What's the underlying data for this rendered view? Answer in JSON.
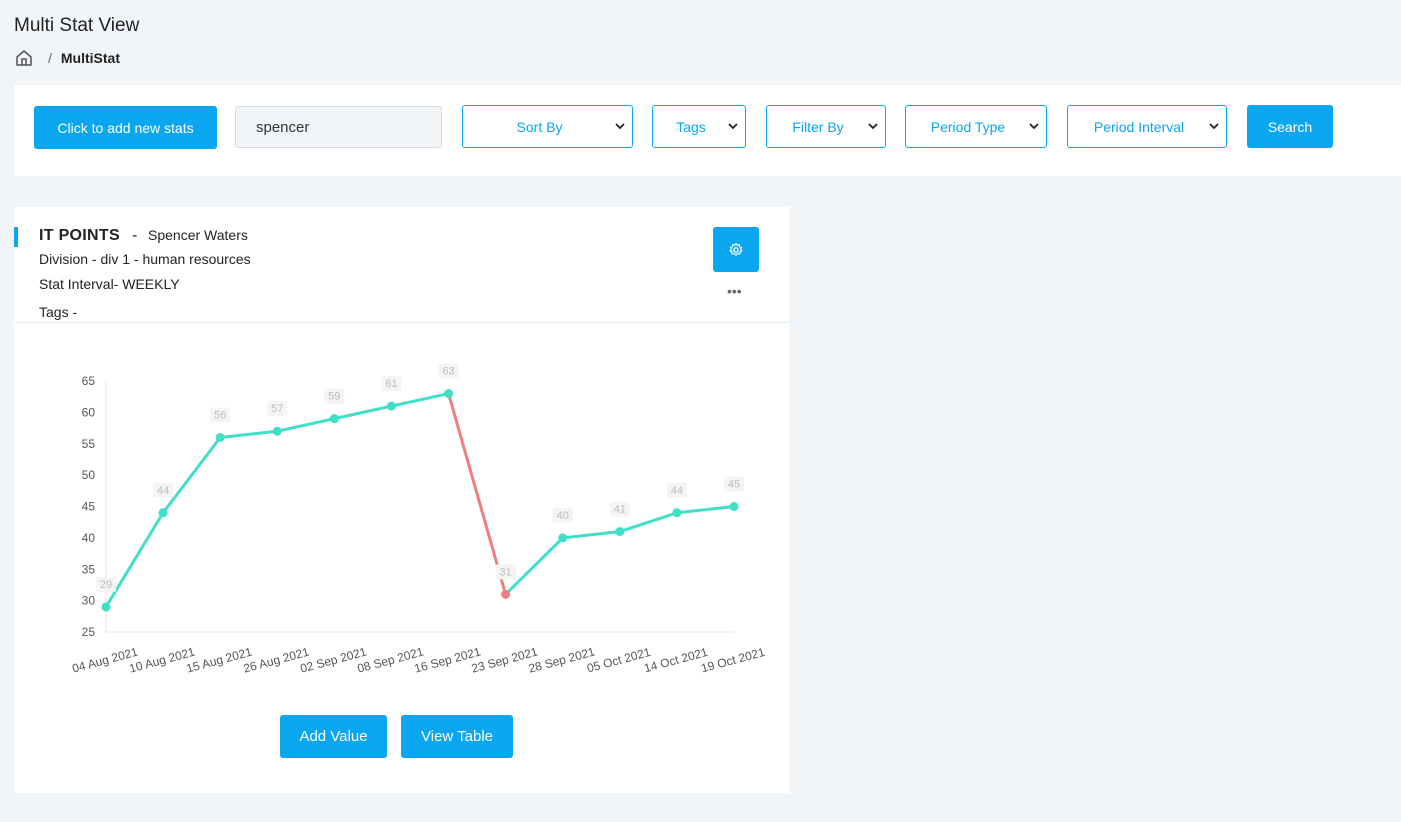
{
  "header": {
    "title": "Multi Stat View",
    "breadcrumb_current": "MultiStat",
    "breadcrumb_separator": "/"
  },
  "toolbar": {
    "add_stats_label": "Click to add new stats",
    "search_value": "spencer",
    "sort_by": "Sort By",
    "tags": "Tags",
    "filter_by": "Filter By",
    "period_type": "Period Type",
    "period_interval": "Period Interval",
    "search_label": "Search"
  },
  "card": {
    "stat_name": "IT POINTS",
    "dash": "-",
    "owner": "Spencer Waters",
    "division": "Division - div 1 - human resources",
    "interval": "Stat Interval- WEEKLY",
    "tags": "Tags -",
    "more": "•••",
    "add_value_label": "Add Value",
    "view_table_label": "View Table"
  },
  "colors": {
    "primary": "#0aa6ef",
    "line_up": "#3fdfc8",
    "line_down": "#ef7f7f"
  },
  "chart_data": {
    "type": "line",
    "categories": [
      "04 Aug 2021",
      "10 Aug 2021",
      "15 Aug 2021",
      "26 Aug 2021",
      "02 Sep 2021",
      "08 Sep 2021",
      "16 Sep 2021",
      "23 Sep 2021",
      "28 Sep 2021",
      "05 Oct 2021",
      "14 Oct 2021",
      "19 Oct 2021"
    ],
    "values": [
      29,
      44,
      56,
      57,
      59,
      61,
      63,
      31,
      40,
      41,
      44,
      45
    ],
    "ylim": [
      25,
      65
    ],
    "yticks": [
      25,
      30,
      35,
      40,
      45,
      50,
      55,
      60,
      65
    ],
    "title": "",
    "xlabel": "",
    "ylabel": "",
    "grid": false
  }
}
